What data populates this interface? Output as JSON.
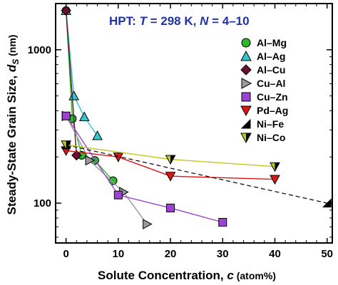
{
  "chart_data": {
    "type": "scatter",
    "title": "",
    "annotation": {
      "parts": [
        "HPT: ",
        "T",
        " = 298 K, ",
        "N",
        " = 4–10"
      ]
    },
    "xlabel": "Solute Concentration, ",
    "xlabel_symbol": "c",
    "xlabel_unit": " (atom%)",
    "ylabel": "Steady-State Grain Size, ",
    "ylabel_symbol": "d",
    "ylabel_sub": "S",
    "ylabel_unit": " (nm)",
    "x_scale": "linear",
    "y_scale": "log",
    "xlim": [
      -2,
      51
    ],
    "ylim": [
      55,
      2000
    ],
    "x_ticks": [
      0,
      10,
      20,
      30,
      40,
      50
    ],
    "y_ticks": [
      100,
      1000
    ],
    "legend_position": "right",
    "series": [
      {
        "name": "Al–Mg",
        "marker": "circle",
        "color": "#2cb82c",
        "line": "solid",
        "x": [
          0,
          1.2,
          3,
          5.5,
          9
        ],
        "y": [
          1800,
          355,
          205,
          190,
          140
        ]
      },
      {
        "name": "Al–Ag",
        "marker": "triangle-up",
        "color": "#33c4cc",
        "line": "solid",
        "x": [
          0,
          1.5,
          3.5,
          6
        ],
        "y": [
          1800,
          500,
          365,
          275
        ]
      },
      {
        "name": "Al–Cu",
        "marker": "diamond",
        "color": "#6b1030",
        "line": "solid",
        "x": [
          0,
          2
        ],
        "y": [
          1800,
          205
        ]
      },
      {
        "name": "Cu–Al",
        "marker": "triangle-right",
        "color": "#9a9a9a",
        "line": "solid",
        "x": [
          0,
          4.5,
          11,
          15.5
        ],
        "y": [
          370,
          190,
          118,
          73
        ]
      },
      {
        "name": "Cu–Zn",
        "marker": "square",
        "color": "#9b44d4",
        "line": "solid",
        "x": [
          0,
          10,
          20,
          30
        ],
        "y": [
          370,
          113,
          93,
          75
        ]
      },
      {
        "name": "Pd–Ag",
        "marker": "triangle-down",
        "color": "#dd1515",
        "line": "solid",
        "x": [
          0,
          10,
          20,
          40
        ],
        "y": [
          220,
          200,
          150,
          143
        ]
      },
      {
        "name": "Ni–Fe",
        "marker": "half-square",
        "color": "#000000",
        "line": "dashed",
        "x": [
          0,
          50
        ],
        "y": [
          240,
          100
        ]
      },
      {
        "name": "Ni–Co",
        "marker": "triangle-down-half",
        "color": "#c2c824",
        "line": "solid",
        "x": [
          0,
          20,
          40
        ],
        "y": [
          240,
          193,
          173
        ]
      }
    ]
  }
}
